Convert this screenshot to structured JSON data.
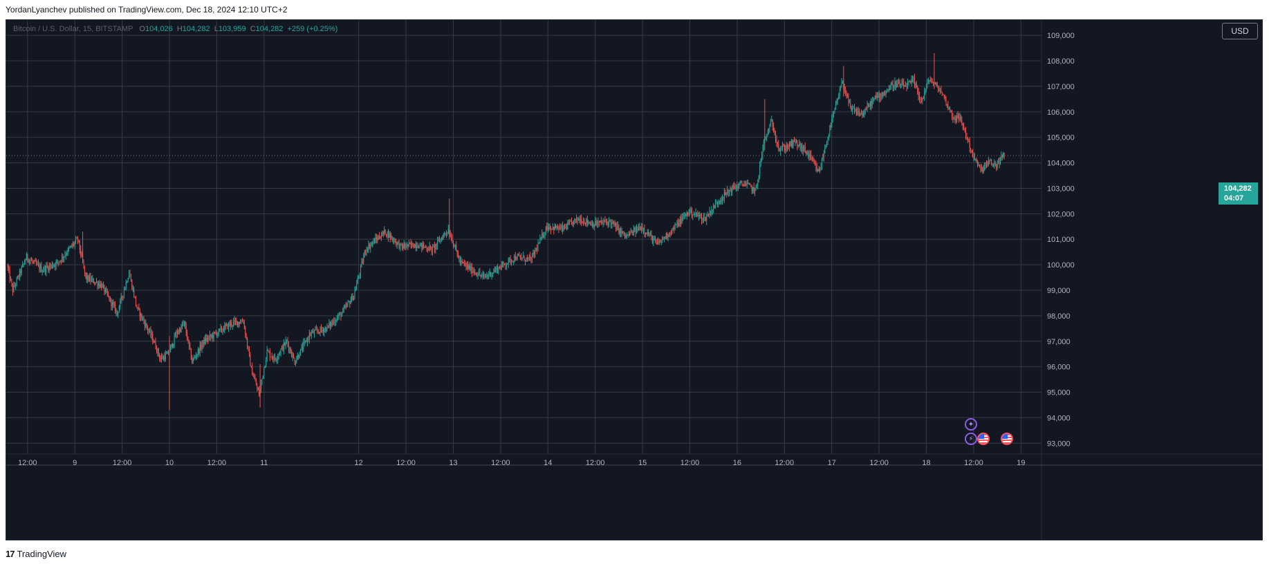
{
  "header": {
    "author": "YordanLyanchev",
    "published_text": "published on TradingView.com, Dec 18, 2024 12:10 UTC+2"
  },
  "legend": {
    "symbol": "Bitcoin / U.S. Dollar, 15, BITSTAMP",
    "o_label": "O",
    "o_value": "104,026",
    "h_label": "H",
    "h_value": "104,282",
    "l_label": "L",
    "l_value": "103,959",
    "c_label": "C",
    "c_value": "104,282",
    "change": "+259 (+0.25%)"
  },
  "currency_button": "USD",
  "last_price": {
    "price": "104,282",
    "countdown": "04:07"
  },
  "footer": {
    "brand": "TradingView",
    "logo_text": "17"
  },
  "colors": {
    "background": "#131722",
    "grid": "#363a45",
    "up": "#26a69a",
    "down": "#ef5350",
    "axis_text": "#b2b5be"
  },
  "events": {
    "purple_icon": "star-event-icon",
    "bolt_icon": "lightning-event-icon",
    "flag_icon": "us-flag-event-icon"
  },
  "chart_data": {
    "type": "candlestick",
    "symbol": "Bitcoin / U.S. Dollar, 15, BITSTAMP",
    "timeframe_minutes": 15,
    "ylim": [
      92900,
      109600
    ],
    "y_ticks": [
      93000,
      94000,
      95000,
      96000,
      97000,
      98000,
      99000,
      100000,
      101000,
      102000,
      103000,
      104000,
      105000,
      106000,
      107000,
      108000,
      109000
    ],
    "y_tick_labels": [
      "93,000",
      "94,000",
      "95,000",
      "96,000",
      "97,000",
      "98,000",
      "99,000",
      "100,000",
      "101,000",
      "102,000",
      "103,000",
      "104,000",
      "105,000",
      "106,000",
      "107,000",
      "108,000",
      "109,000"
    ],
    "x_tick_labels": [
      "12:00",
      "9",
      "12:00",
      "10",
      "12:00",
      "11",
      "12",
      "12:00",
      "13",
      "12:00",
      "14",
      "12:00",
      "15",
      "12:00",
      "16",
      "12:00",
      "17",
      "12:00",
      "18",
      "12:00",
      "19"
    ],
    "x_tick_times": [
      "Dec 8 12:00",
      "Dec 9",
      "Dec 9 12:00",
      "Dec 10",
      "Dec 10 12:00",
      "Dec 11",
      "Dec 12",
      "Dec 12 12:00",
      "Dec 13",
      "Dec 13 12:00",
      "Dec 14",
      "Dec 14 12:00",
      "Dec 15",
      "Dec 15 12:00",
      "Dec 16",
      "Dec 16 12:00",
      "Dec 17",
      "Dec 17 12:00",
      "Dec 18",
      "Dec 18 12:00",
      "Dec 19"
    ],
    "grid": true,
    "last_close": 104282,
    "anchors": [
      [
        "Dec 8 07:00",
        100000
      ],
      [
        "Dec 8 08:30",
        99000
      ],
      [
        "Dec 8 12:00",
        100300
      ],
      [
        "Dec 8 16:00",
        99800
      ],
      [
        "Dec 8 20:00",
        100100
      ],
      [
        "Dec 9 01:00",
        101000
      ],
      [
        "Dec 9 03:00",
        99500
      ],
      [
        "Dec 9 07:00",
        99200
      ],
      [
        "Dec 9 11:00",
        98100
      ],
      [
        "Dec 9 14:00",
        99700
      ],
      [
        "Dec 9 16:00",
        98300
      ],
      [
        "Dec 9 20:00",
        97100
      ],
      [
        "Dec 9 22:00",
        96300
      ],
      [
        "Dec 10 00:00",
        96500
      ],
      [
        "Dec 10 02:00",
        97300
      ],
      [
        "Dec 10 04:00",
        97700
      ],
      [
        "Dec 10 06:00",
        96200
      ],
      [
        "Dec 10 09:00",
        97000
      ],
      [
        "Dec 10 12:00",
        97300
      ],
      [
        "Dec 10 16:00",
        97700
      ],
      [
        "Dec 10 19:00",
        97800
      ],
      [
        "Dec 10 21:00",
        95900
      ],
      [
        "Dec 10 23:00",
        94900
      ],
      [
        "Dec 11 01:00",
        96600
      ],
      [
        "Dec 11 03:00",
        96300
      ],
      [
        "Dec 11 06:00",
        97000
      ],
      [
        "Dec 11 08:00",
        96200
      ],
      [
        "Dec 11 12:00",
        97300
      ],
      [
        "Dec 11 16:00",
        97500
      ],
      [
        "Dec 11 20:00",
        98100
      ],
      [
        "Dec 11 23:00",
        98800
      ],
      [
        "Dec 12 02:00",
        100600
      ],
      [
        "Dec 12 04:00",
        100900
      ],
      [
        "Dec 12 07:00",
        101300
      ],
      [
        "Dec 12 11:00",
        100700
      ],
      [
        "Dec 12 15:00",
        100800
      ],
      [
        "Dec 12 19:00",
        100600
      ],
      [
        "Dec 12 23:00",
        101400
      ],
      [
        "Dec 13 02:00",
        100100
      ],
      [
        "Dec 13 05:00",
        99800
      ],
      [
        "Dec 13 08:00",
        99500
      ],
      [
        "Dec 13 12:00",
        99900
      ],
      [
        "Dec 13 16:00",
        100300
      ],
      [
        "Dec 13 20:00",
        100200
      ],
      [
        "Dec 14 00:00",
        101500
      ],
      [
        "Dec 14 04:00",
        101400
      ],
      [
        "Dec 14 08:00",
        101800
      ],
      [
        "Dec 14 12:00",
        101600
      ],
      [
        "Dec 14 16:00",
        101700
      ],
      [
        "Dec 14 20:00",
        101100
      ],
      [
        "Dec 15 00:00",
        101500
      ],
      [
        "Dec 15 04:00",
        100800
      ],
      [
        "Dec 15 08:00",
        101400
      ],
      [
        "Dec 15 12:00",
        102100
      ],
      [
        "Dec 15 16:00",
        101800
      ],
      [
        "Dec 15 20:00",
        102600
      ],
      [
        "Dec 15 23:00",
        103000
      ],
      [
        "Dec 16 02:00",
        103200
      ],
      [
        "Dec 16 05:00",
        102900
      ],
      [
        "Dec 16 07:00",
        104800
      ],
      [
        "Dec 16 09:00",
        105600
      ],
      [
        "Dec 16 11:00",
        104500
      ],
      [
        "Dec 16 15:00",
        104800
      ],
      [
        "Dec 16 18:00",
        104400
      ],
      [
        "Dec 16 21:00",
        103600
      ],
      [
        "Dec 17 00:00",
        105500
      ],
      [
        "Dec 17 03:00",
        107200
      ],
      [
        "Dec 17 05:00",
        106100
      ],
      [
        "Dec 17 08:00",
        105900
      ],
      [
        "Dec 17 11:00",
        106500
      ],
      [
        "Dec 17 14:00",
        106800
      ],
      [
        "Dec 17 16:00",
        107100
      ],
      [
        "Dec 17 19:00",
        107000
      ],
      [
        "Dec 17 21:00",
        107200
      ],
      [
        "Dec 17 23:00",
        106400
      ],
      [
        "Dec 18 01:00",
        107300
      ],
      [
        "Dec 18 04:00",
        106800
      ],
      [
        "Dec 18 07:00",
        105800
      ],
      [
        "Dec 18 09:00",
        105700
      ],
      [
        "Dec 18 12:00",
        104300
      ],
      [
        "Dec 18 14:00",
        103700
      ],
      [
        "Dec 18 16:00",
        104000
      ],
      [
        "Dec 18 18:00",
        103900
      ],
      [
        "Dec 18 19:45",
        104282
      ]
    ]
  }
}
